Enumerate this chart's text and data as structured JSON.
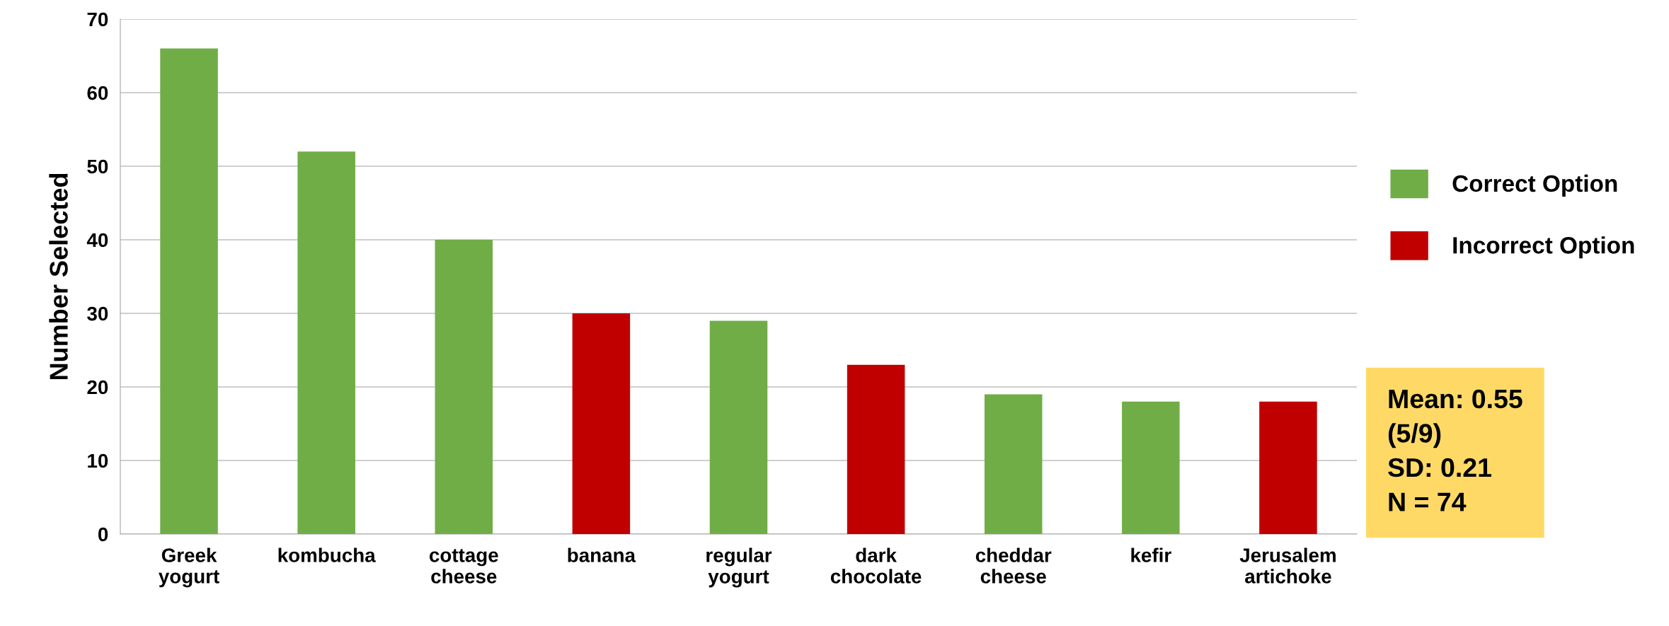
{
  "chart_data": {
    "type": "bar",
    "ylabel": "Number Selected",
    "categories": [
      "Greek\nyogurt",
      "kombucha",
      "cottage\ncheese",
      "banana",
      "regular\nyogurt",
      "dark\nchocolate",
      "cheddar\ncheese",
      "kefir",
      "Jerusalem\nartichoke"
    ],
    "series": [
      {
        "name": "Correct Option",
        "color": "#70ad47",
        "values": [
          66,
          52,
          40,
          null,
          29,
          null,
          19,
          18,
          null
        ]
      },
      {
        "name": "Incorrect Option",
        "color": "#c00000",
        "values": [
          null,
          null,
          null,
          30,
          null,
          23,
          null,
          null,
          18
        ]
      }
    ],
    "ylim": [
      0,
      70
    ],
    "yticks": [
      0,
      10,
      20,
      30,
      40,
      50,
      60,
      70
    ],
    "grid": "y",
    "legend": "right",
    "annotations": [
      "Mean: 0.55\n(5/9)\nSD: 0.21\nN = 74"
    ]
  }
}
